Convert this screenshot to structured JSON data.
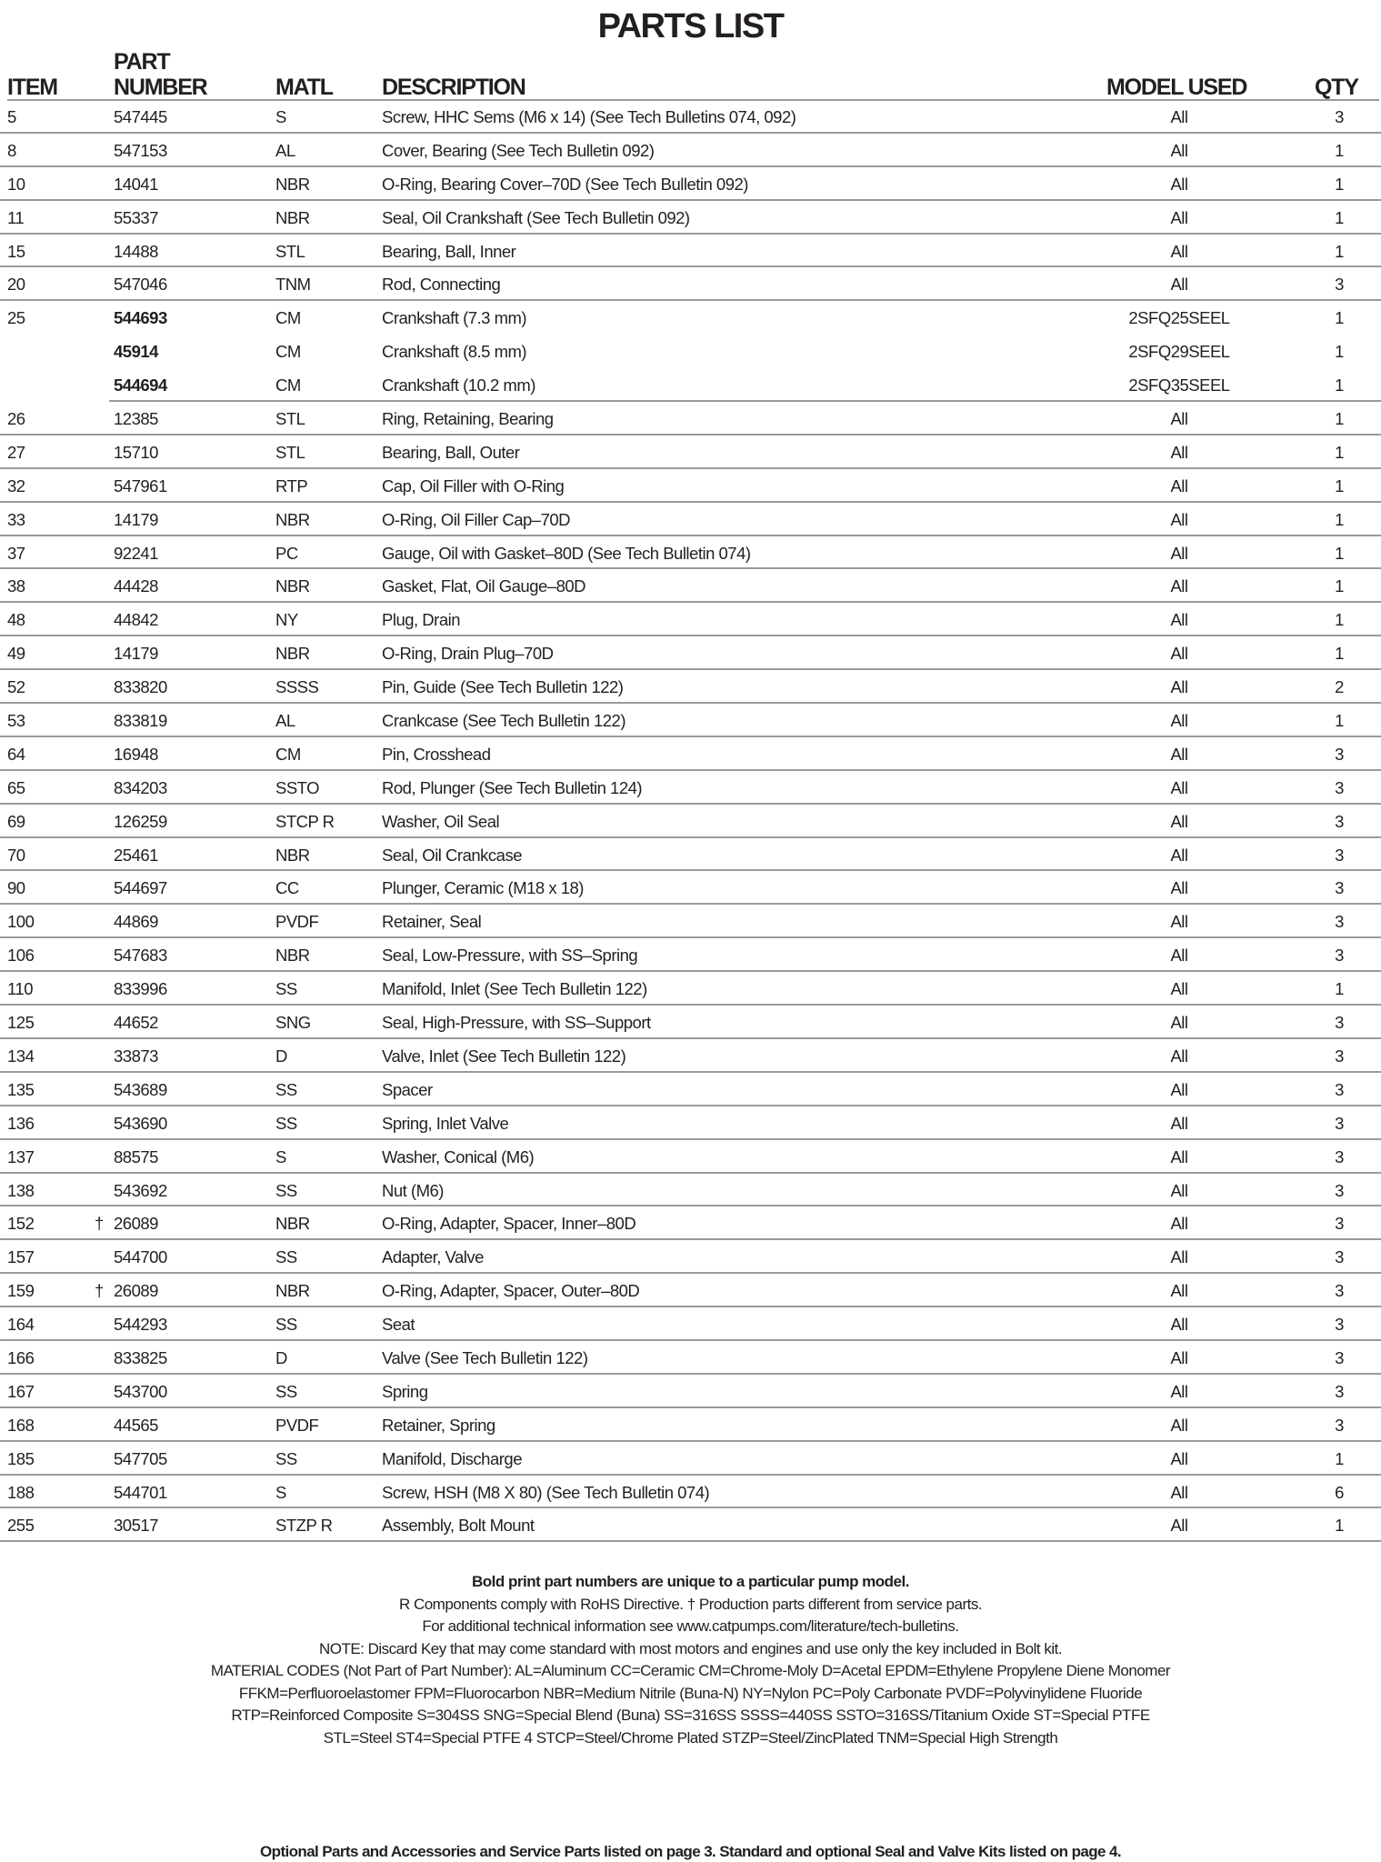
{
  "title": "PARTS LIST",
  "headers": {
    "item": "ITEM",
    "part_top": "PART",
    "part_bottom": "NUMBER",
    "matl": "MATL",
    "description": "DESCRIPTION",
    "model": "MODEL USED",
    "qty": "QTY"
  },
  "rows": [
    {
      "item": "5",
      "part": "547445",
      "matl": "S",
      "desc": "Screw, HHC Sems (M6 x 14) (See Tech Bulletins 074, 092)",
      "model": "All",
      "qty": "3"
    },
    {
      "item": "8",
      "part": "547153",
      "matl": "AL",
      "desc": "Cover, Bearing (See Tech Bulletin 092)",
      "model": "All",
      "qty": "1"
    },
    {
      "item": "10",
      "part": "14041",
      "matl": "NBR",
      "desc": "O-Ring, Bearing Cover–70D (See Tech Bulletin 092)",
      "model": "All",
      "qty": "1"
    },
    {
      "item": "11",
      "part": "55337",
      "matl": "NBR",
      "desc": "Seal, Oil Crankshaft (See Tech Bulletin 092)",
      "model": "All",
      "qty": "1"
    },
    {
      "item": "15",
      "part": "14488",
      "matl": "STL",
      "desc": "Bearing, Ball, Inner",
      "model": "All",
      "qty": "1"
    },
    {
      "item": "20",
      "part": "547046",
      "matl": "TNM",
      "desc": "Rod, Connecting",
      "model": "All",
      "qty": "3"
    },
    {
      "item": "25",
      "part": "544693",
      "bold": true,
      "matl": "CM",
      "desc": "Crankshaft (7.3 mm)",
      "model": "2SFQ25SEEL",
      "qty": "1"
    },
    {
      "item": "",
      "part": "45914",
      "bold": true,
      "matl": "CM",
      "desc": "Crankshaft (8.5 mm)",
      "model": "2SFQ29SEEL",
      "qty": "1"
    },
    {
      "item": "",
      "part": "544694",
      "bold": true,
      "matl": "CM",
      "desc": "Crankshaft (10.2 mm)",
      "model": "2SFQ35SEEL",
      "qty": "1"
    },
    {
      "item": "26",
      "part": "12385",
      "matl": "STL",
      "desc": "Ring, Retaining, Bearing",
      "model": "All",
      "qty": "1"
    },
    {
      "item": "27",
      "part": "15710",
      "matl": "STL",
      "desc": "Bearing, Ball, Outer",
      "model": "All",
      "qty": "1"
    },
    {
      "item": "32",
      "part": "547961",
      "matl": "RTP",
      "desc": "Cap, Oil Filler with O-Ring",
      "model": "All",
      "qty": "1"
    },
    {
      "item": "33",
      "part": "14179",
      "matl": "NBR",
      "desc": "O-Ring, Oil Filler Cap–70D",
      "model": "All",
      "qty": "1"
    },
    {
      "item": "37",
      "part": "92241",
      "matl": "PC",
      "desc": "Gauge, Oil with Gasket–80D (See Tech Bulletin 074)",
      "model": "All",
      "qty": "1"
    },
    {
      "item": "38",
      "part": "44428",
      "matl": "NBR",
      "desc": "Gasket, Flat, Oil Gauge–80D",
      "model": "All",
      "qty": "1"
    },
    {
      "item": "48",
      "part": "44842",
      "matl": "NY",
      "desc": "Plug, Drain",
      "model": "All",
      "qty": "1"
    },
    {
      "item": "49",
      "part": "14179",
      "matl": "NBR",
      "desc": "O-Ring, Drain Plug–70D",
      "model": "All",
      "qty": "1"
    },
    {
      "item": "52",
      "part": "833820",
      "matl": "SSSS",
      "desc": "Pin, Guide (See Tech Bulletin 122)",
      "model": "All",
      "qty": "2"
    },
    {
      "item": "53",
      "part": "833819",
      "matl": "AL",
      "desc": "Crankcase (See Tech Bulletin 122)",
      "model": "All",
      "qty": "1"
    },
    {
      "item": "64",
      "part": "16948",
      "matl": "CM",
      "desc": "Pin, Crosshead",
      "model": "All",
      "qty": "3"
    },
    {
      "item": "65",
      "part": "834203",
      "matl": "SSTO",
      "desc": "Rod, Plunger (See Tech Bulletin 124)",
      "model": "All",
      "qty": "3"
    },
    {
      "item": "69",
      "part": "126259",
      "matl": "STCP R",
      "desc": "Washer, Oil Seal",
      "model": "All",
      "qty": "3"
    },
    {
      "item": "70",
      "part": "25461",
      "matl": "NBR",
      "desc": "Seal, Oil Crankcase",
      "model": "All",
      "qty": "3"
    },
    {
      "item": "90",
      "part": "544697",
      "matl": "CC",
      "desc": "Plunger, Ceramic (M18 x 18)",
      "model": "All",
      "qty": "3"
    },
    {
      "item": "100",
      "part": "44869",
      "matl": "PVDF",
      "desc": "Retainer, Seal",
      "model": "All",
      "qty": "3"
    },
    {
      "item": "106",
      "part": "547683",
      "matl": "NBR",
      "desc": "Seal, Low-Pressure, with SS–Spring",
      "model": "All",
      "qty": "3"
    },
    {
      "item": "110",
      "part": "833996",
      "matl": "SS",
      "desc": "Manifold, Inlet (See Tech Bulletin 122)",
      "model": "All",
      "qty": "1"
    },
    {
      "item": "125",
      "part": "44652",
      "matl": "SNG",
      "desc": "Seal, High-Pressure, with SS–Support",
      "model": "All",
      "qty": "3"
    },
    {
      "item": "134",
      "part": "33873",
      "matl": "D",
      "desc": "Valve, Inlet (See Tech Bulletin 122)",
      "model": "All",
      "qty": "3"
    },
    {
      "item": "135",
      "part": "543689",
      "matl": "SS",
      "desc": "Spacer",
      "model": "All",
      "qty": "3"
    },
    {
      "item": "136",
      "part": "543690",
      "matl": "SS",
      "desc": "Spring, Inlet Valve",
      "model": "All",
      "qty": "3"
    },
    {
      "item": "137",
      "part": "88575",
      "matl": "S",
      "desc": "Washer, Conical (M6)",
      "model": "All",
      "qty": "3"
    },
    {
      "item": "138",
      "part": "543692",
      "matl": "SS",
      "desc": "Nut (M6)",
      "model": "All",
      "qty": "3"
    },
    {
      "item": "152",
      "dagger": "†",
      "part": "26089",
      "matl": "NBR",
      "desc": "O-Ring, Adapter, Spacer, Inner–80D",
      "model": "All",
      "qty": "3"
    },
    {
      "item": "157",
      "part": "544700",
      "matl": "SS",
      "desc": "Adapter, Valve",
      "model": "All",
      "qty": "3"
    },
    {
      "item": "159",
      "dagger": "†",
      "part": "26089",
      "matl": "NBR",
      "desc": "O-Ring, Adapter, Spacer, Outer–80D",
      "model": "All",
      "qty": "3"
    },
    {
      "item": "164",
      "part": "544293",
      "matl": "SS",
      "desc": "Seat",
      "model": "All",
      "qty": "3"
    },
    {
      "item": "166",
      "part": "833825",
      "matl": "D",
      "desc": "Valve (See Tech Bulletin 122)",
      "model": "All",
      "qty": "3"
    },
    {
      "item": "167",
      "part": "543700",
      "matl": "SS",
      "desc": "Spring",
      "model": "All",
      "qty": "3"
    },
    {
      "item": "168",
      "part": "44565",
      "matl": "PVDF",
      "desc": "Retainer, Spring",
      "model": "All",
      "qty": "3"
    },
    {
      "item": "185",
      "part": "547705",
      "matl": "SS",
      "desc": "Manifold, Discharge",
      "model": "All",
      "qty": "1"
    },
    {
      "item": "188",
      "part": "544701",
      "matl": "S",
      "desc": "Screw, HSH (M8 X 80) (See Tech Bulletin 074)",
      "model": "All",
      "qty": "6"
    },
    {
      "item": "255",
      "part": "30517",
      "matl": "STZP R",
      "desc": "Assembly, Bolt Mount",
      "model": "All",
      "qty": "1"
    }
  ],
  "notes": {
    "bold_note": "Bold print part numbers are unique to a particular pump model.",
    "rohs": "R Components comply with RoHS Directive.  † Production parts different from service parts.",
    "tech": "For additional technical information see www.catpumps.com/literature/tech-bulletins.",
    "key": "NOTE: Discard Key that may come standard with most motors and engines and use only the key included in Bolt kit.",
    "codes1": "MATERIAL CODES (Not Part of Part Number):  AL=Aluminum  CC=Ceramic  CM=Chrome-Moly  D=Acetal  EPDM=Ethylene Propylene Diene Monomer",
    "codes2": "FFKM=Perfluoroelastomer  FPM=Fluorocarbon  NBR=Medium Nitrile (Buna-N)  NY=Nylon  PC=Poly Carbonate  PVDF=Polyvinylidene Fluoride",
    "codes3": "RTP=Reinforced Composite  S=304SS  SNG=Special Blend (Buna)  SS=316SS  SSSS=440SS  SSTO=316SS/Titanium Oxide  ST=Special PTFE",
    "codes4": "STL=Steel  ST4=Special PTFE 4  STCP=Steel/Chrome Plated  STZP=Steel/ZincPlated  TNM=Special High Strength"
  },
  "footer": "Optional Parts and Accessories and Service Parts listed on page 3. Standard and optional Seal and Valve Kits listed on page 4."
}
